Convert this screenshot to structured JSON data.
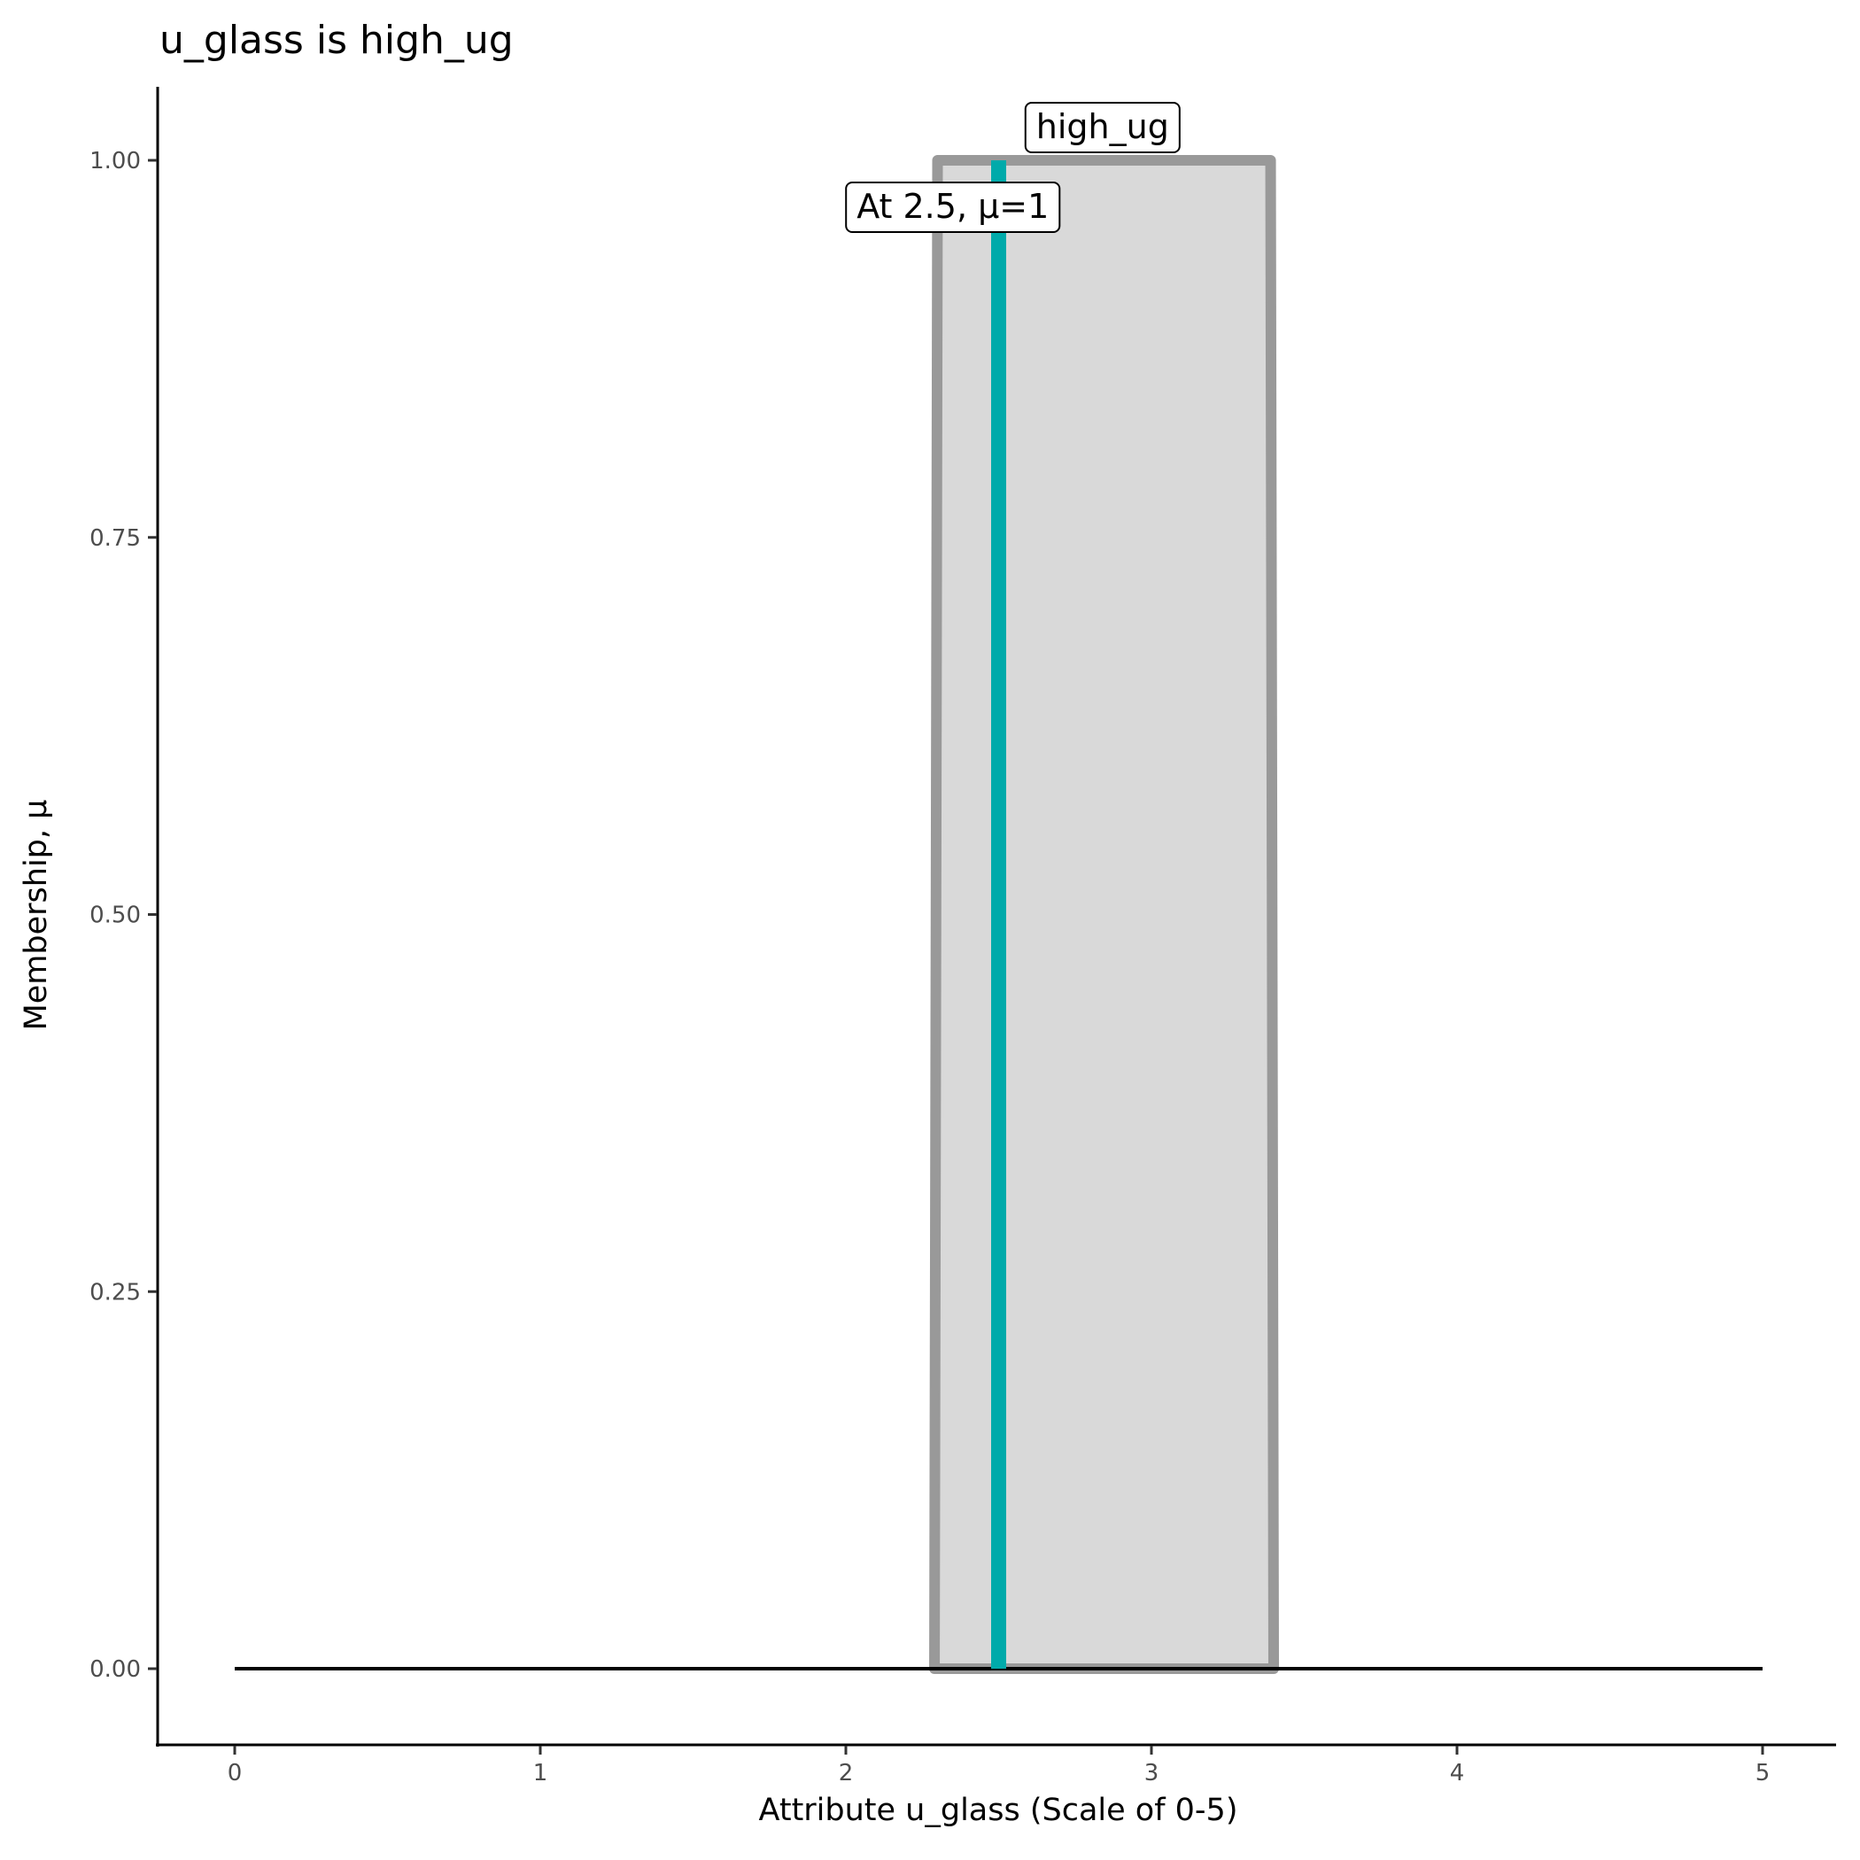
{
  "chart_data": {
    "type": "area",
    "title": "u_glass is high_ug",
    "xlabel": "Attribute u_glass (Scale of 0-5)",
    "ylabel": "Membership, μ",
    "xlim": [
      0,
      5
    ],
    "ylim": [
      0,
      1
    ],
    "x_ticks": [
      "0",
      "1",
      "2",
      "3",
      "4",
      "5"
    ],
    "y_ticks": [
      "0.00",
      "0.25",
      "0.50",
      "0.75",
      "1.00"
    ],
    "grid": false,
    "membership_function": {
      "name": "high_ug",
      "x": [
        2.29,
        2.3,
        3.39,
        3.4
      ],
      "y": [
        0,
        1,
        1,
        0
      ]
    },
    "baseline": {
      "x": [
        0,
        5
      ],
      "y": [
        0,
        0
      ]
    },
    "marker": {
      "x": 2.5,
      "mu": 1,
      "label": "At 2.5, μ=1"
    },
    "colors": {
      "fill": "#d9d9d9",
      "outline": "#999999",
      "marker": "#00aaaa",
      "baseline": "#000000"
    }
  }
}
